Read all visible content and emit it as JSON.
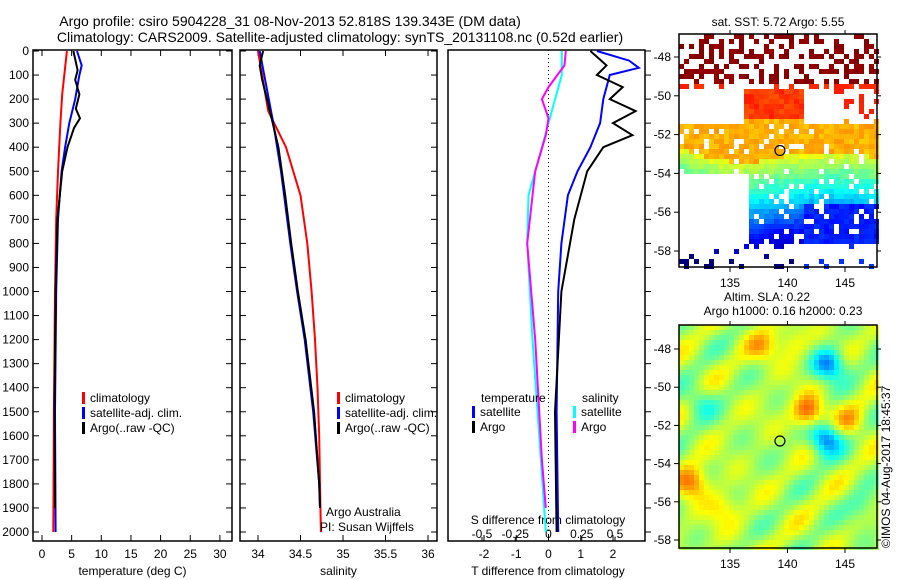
{
  "title": {
    "line1": "Argo profile: csiro 5904228_31 08-Nov-2013 52.818S 139.343E (DM data)",
    "line2": "Climatology: CARS2009. Satellite-adjusted climatology: synTS_20131108.nc (0.52d earlier)"
  },
  "watermark": "©IMOS 04-Aug-2017 18:45:37",
  "colors": {
    "clim": "#ff0000",
    "sat": "#0000ff",
    "argo": "#000000",
    "sal_sat": "#00ffff",
    "sal_argo": "#ff00ff"
  },
  "chart_data": [
    {
      "type": "line",
      "xlabel": "temperature (deg C)",
      "ylabel": "depth",
      "xlim": [
        -1.5,
        31.5
      ],
      "ylim": [
        0,
        2080
      ],
      "xticks": [
        0,
        5,
        10,
        15,
        20,
        25,
        30
      ],
      "yticks": [
        0,
        100,
        200,
        300,
        400,
        500,
        600,
        700,
        800,
        900,
        1000,
        1100,
        1200,
        1300,
        1400,
        1500,
        1600,
        1700,
        1800,
        1900,
        2000
      ],
      "legend": [
        "climatology",
        "satellite-adj. clim.",
        "Argo(..raw -QC)"
      ],
      "series": [
        {
          "name": "climatology",
          "depth": [
            0,
            180,
            300,
            500,
            700,
            1000,
            1500,
            2000
          ],
          "values": [
            4.2,
            3.4,
            3.1,
            2.7,
            2.4,
            2.2,
            2.0,
            1.9
          ]
        },
        {
          "name": "satellite-adj. clim.",
          "depth": [
            0,
            60,
            100,
            200,
            300,
            400,
            500,
            700,
            1000,
            1500,
            2000
          ],
          "values": [
            5.9,
            6.7,
            6.3,
            5.6,
            4.6,
            3.9,
            3.3,
            2.7,
            2.4,
            2.2,
            2.3
          ]
        },
        {
          "name": "Argo(..raw -QC)",
          "depth": [
            0,
            80,
            120,
            180,
            240,
            280,
            320,
            400,
            500,
            700,
            1000,
            1500,
            1900
          ],
          "values": [
            5.3,
            6.0,
            5.6,
            6.3,
            5.7,
            6.4,
            5.4,
            4.3,
            3.4,
            2.6,
            2.3,
            2.1,
            2.2
          ]
        }
      ]
    },
    {
      "type": "line",
      "xlabel": "salinity",
      "xlim": [
        33.8,
        36.1
      ],
      "ylim": [
        0,
        2080
      ],
      "xticks": [
        34,
        34.5,
        35,
        35.5,
        36
      ],
      "legend": [
        "climatology",
        "satellite-adj. clim.",
        "Argo(..raw -QC)"
      ],
      "annotation": [
        "Argo Australia",
        "PI: Susan Wijffels"
      ],
      "series": [
        {
          "name": "climatology",
          "depth": [
            0,
            250,
            400,
            600,
            800,
            1000,
            1200,
            1400,
            1600,
            1800,
            2000
          ],
          "values": [
            34.0,
            34.12,
            34.33,
            34.5,
            34.58,
            34.63,
            34.67,
            34.7,
            34.72,
            34.73,
            34.74
          ]
        },
        {
          "name": "satellite-adj. clim.",
          "depth": [
            0,
            300,
            500,
            800,
            1000,
            1200,
            1500,
            1800,
            1900
          ],
          "values": [
            34.02,
            34.18,
            34.27,
            34.38,
            34.46,
            34.55,
            34.65,
            34.72,
            34.73
          ]
        },
        {
          "name": "Argo(..raw -QC)",
          "depth": [
            0,
            60,
            120,
            250,
            400,
            600,
            800,
            1000,
            1200,
            1500,
            1800,
            1900
          ],
          "values": [
            34.06,
            34.02,
            34.05,
            34.14,
            34.24,
            34.32,
            34.39,
            34.47,
            34.56,
            34.66,
            34.72,
            34.73
          ]
        }
      ]
    },
    {
      "type": "line",
      "xlabel": "T difference from climatology",
      "x2label": "S difference from climatology",
      "xlim": [
        -2.9,
        3.2
      ],
      "ylim": [
        0,
        2080
      ],
      "xticks": [
        -2,
        -1,
        0,
        1,
        2
      ],
      "x2ticks": [
        "-0.5",
        "-0.25",
        "0",
        "0.25",
        "0.5"
      ],
      "legend": {
        "temperature": [
          "satellite",
          "Argo"
        ],
        "salinity": [
          "satellite",
          "Argo"
        ],
        "temp_title": "temperature",
        "sal_title": "salinity"
      },
      "series": [
        {
          "name": "T satellite",
          "depth": [
            0,
            40,
            70,
            100,
            200,
            300,
            400,
            500,
            600,
            800,
            1000,
            1500,
            2000
          ],
          "values": [
            1.5,
            2.5,
            2.8,
            1.9,
            1.7,
            1.6,
            1.3,
            0.9,
            0.6,
            0.4,
            0.3,
            0.25,
            0.3
          ]
        },
        {
          "name": "T Argo",
          "depth": [
            0,
            60,
            100,
            150,
            200,
            250,
            300,
            350,
            400,
            500,
            700,
            1000,
            1500,
            2000
          ],
          "values": [
            1.3,
            1.8,
            1.5,
            2.3,
            1.9,
            2.7,
            2.0,
            2.6,
            1.7,
            1.2,
            0.8,
            0.4,
            0.2,
            0.25
          ]
        },
        {
          "name": "S satellite",
          "depth": [
            0,
            100,
            200,
            300,
            400,
            600,
            800,
            1200,
            1600,
            2000
          ],
          "values": [
            0.1,
            0.1,
            0.05,
            0.0,
            -0.05,
            -0.15,
            -0.16,
            -0.12,
            -0.07,
            -0.02
          ]
        },
        {
          "name": "S Argo",
          "depth": [
            0,
            60,
            150,
            200,
            280,
            350,
            500,
            800,
            1200,
            1700,
            1900
          ],
          "values": [
            0.13,
            0.12,
            0.0,
            -0.05,
            0.0,
            -0.02,
            -0.1,
            -0.16,
            -0.1,
            -0.05,
            -0.02
          ]
        }
      ]
    },
    {
      "type": "heatmap",
      "title": "sat. SST: 5.72 Argo: 5.55",
      "xlim": [
        131,
        148
      ],
      "ylim": [
        -59,
        -46.8
      ],
      "xticks": [
        135,
        140,
        145
      ],
      "yticks": [
        -48,
        -50,
        -52,
        -54,
        -56,
        -58
      ],
      "marker": {
        "lon": 139.343,
        "lat": -52.818
      }
    },
    {
      "type": "heatmap",
      "title": "Altim. SLA: 0.22",
      "subtitle": "Argo h1000: 0.16 h2000: 0.23",
      "xlim": [
        131,
        148
      ],
      "ylim": [
        -59,
        -46.8
      ],
      "xticks": [
        135,
        140,
        145
      ],
      "yticks": [
        -48,
        -50,
        -52,
        -54,
        -56,
        -58
      ],
      "marker": {
        "lon": 139.343,
        "lat": -52.818
      }
    }
  ]
}
